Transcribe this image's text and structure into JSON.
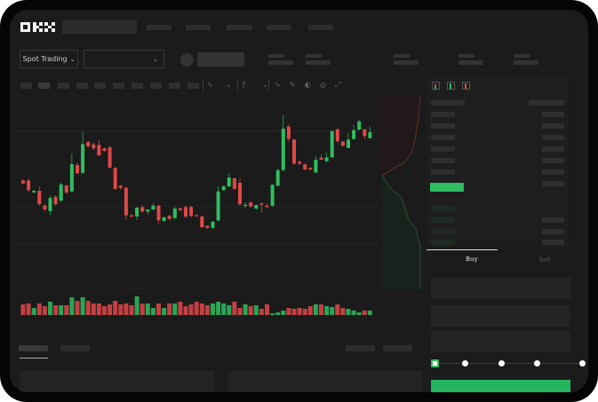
{
  "header": {
    "logo": "OKX"
  },
  "controls": {
    "spot_trading_label": "Spot Trading",
    "dropdown_icon": "chevron-down-icon"
  },
  "trade_tabs": {
    "buy": "Buy",
    "sell": "Sell"
  },
  "colors": {
    "up": "#2ebd5f",
    "down": "#e04848",
    "background": "#1b1b1b",
    "panel": "#1e1e1e"
  },
  "slider": {
    "steps": 5,
    "selected_index": 0
  },
  "toolbar_icons": [
    "line-tool-icon",
    "indicator-icon",
    "pattern-icon",
    "wave-icon",
    "pencil-icon",
    "gauge-icon",
    "target-icon",
    "fullscreen-icon"
  ],
  "orderbook_icons": [
    "orderbook-both-icon",
    "orderbook-bids-icon",
    "orderbook-asks-icon"
  ],
  "chart_data": {
    "type": "candlestick",
    "candles": [
      [
        96.7,
        98,
        92,
        93.3
      ],
      [
        96.7,
        98,
        84,
        85.7
      ],
      [
        83.3,
        86,
        82,
        85
      ],
      [
        85,
        90,
        68,
        70
      ],
      [
        68.3,
        70,
        62,
        64
      ],
      [
        62,
        80,
        58,
        77
      ],
      [
        78.3,
        80,
        68,
        70
      ],
      [
        74,
        94,
        72,
        92.3
      ],
      [
        91,
        92,
        81,
        83
      ],
      [
        84.3,
        127,
        83,
        115
      ],
      [
        114,
        117,
        104,
        104.7
      ],
      [
        105.3,
        152,
        104,
        137.7
      ],
      [
        140,
        141,
        134,
        135
      ],
      [
        137.3,
        139,
        131,
        132.7
      ],
      [
        136.7,
        142,
        124,
        125
      ],
      [
        132.7,
        134,
        129,
        130
      ],
      [
        134,
        136,
        110,
        111
      ],
      [
        110.7,
        112,
        86,
        87.3
      ],
      [
        90.7,
        92,
        86,
        88.3
      ],
      [
        88.3,
        90,
        52,
        57.3
      ],
      [
        57.3,
        59,
        55,
        56
      ],
      [
        56,
        67,
        52,
        66
      ],
      [
        66.7,
        69,
        60,
        61.7
      ],
      [
        61.7,
        64,
        58,
        64
      ],
      [
        64,
        71,
        63,
        68.3
      ],
      [
        68.3,
        69,
        48,
        51.7
      ],
      [
        51,
        56,
        50,
        55
      ],
      [
        56.7,
        58,
        52,
        53.3
      ],
      [
        54.3,
        67,
        53,
        65
      ],
      [
        65.3,
        66,
        62,
        63.3
      ],
      [
        66.7,
        68,
        54,
        56
      ],
      [
        66.7,
        68,
        55,
        56.7
      ],
      [
        57.7,
        58,
        55,
        56.7
      ],
      [
        56,
        57,
        43,
        44
      ],
      [
        45.7,
        46,
        42,
        43.3
      ],
      [
        43.3,
        51,
        42,
        50
      ],
      [
        51.7,
        90,
        50,
        84.3
      ],
      [
        85.7,
        91,
        85,
        90
      ],
      [
        90,
        105,
        89,
        100
      ],
      [
        99,
        100,
        86,
        87.3
      ],
      [
        94,
        99,
        68,
        70
      ],
      [
        68,
        72,
        65,
        69.3
      ],
      [
        72,
        73,
        66,
        67.3
      ],
      [
        65,
        69,
        64,
        69
      ],
      [
        70.7,
        72,
        60,
        69.3
      ],
      [
        68.3,
        71,
        66,
        66.7
      ],
      [
        68.3,
        93,
        67,
        91.7
      ],
      [
        90.7,
        110,
        90,
        108.3
      ],
      [
        108.3,
        170.7,
        107,
        155
      ],
      [
        157.3,
        160,
        140,
        143.3
      ],
      [
        142.7,
        143,
        114,
        115.7
      ],
      [
        117.7,
        119,
        114,
        115.7
      ],
      [
        114.7,
        116,
        108,
        109
      ],
      [
        110.7,
        112,
        108,
        109
      ],
      [
        105.7,
        124,
        105,
        120
      ],
      [
        122.3,
        126,
        120,
        120
      ],
      [
        118.3,
        128,
        117,
        122.7
      ],
      [
        122.7,
        153,
        122,
        152.3
      ],
      [
        154.3,
        155,
        139,
        140.7
      ],
      [
        140.7,
        141,
        135,
        135.7
      ],
      [
        133.3,
        150,
        133,
        142.7
      ],
      [
        143.3,
        159,
        143,
        153.3
      ],
      [
        154,
        165,
        153,
        163.3
      ],
      [
        154.3,
        155,
        143,
        146.7
      ],
      [
        144.3,
        157,
        144,
        151
      ]
    ],
    "volume": [
      12,
      13,
      8,
      13,
      10,
      15,
      11,
      11,
      11,
      20,
      16,
      20,
      16,
      13,
      13,
      10,
      12,
      16,
      12,
      13,
      11,
      21,
      13,
      13,
      8,
      13,
      8,
      13,
      13,
      15,
      10,
      12,
      15,
      13,
      11,
      13,
      15,
      13,
      11,
      15,
      8,
      12,
      10,
      11,
      7,
      12,
      2,
      3,
      5,
      8,
      7,
      8,
      7,
      10,
      12,
      12,
      10,
      9,
      12,
      8,
      7,
      5,
      3,
      5,
      5
    ]
  }
}
